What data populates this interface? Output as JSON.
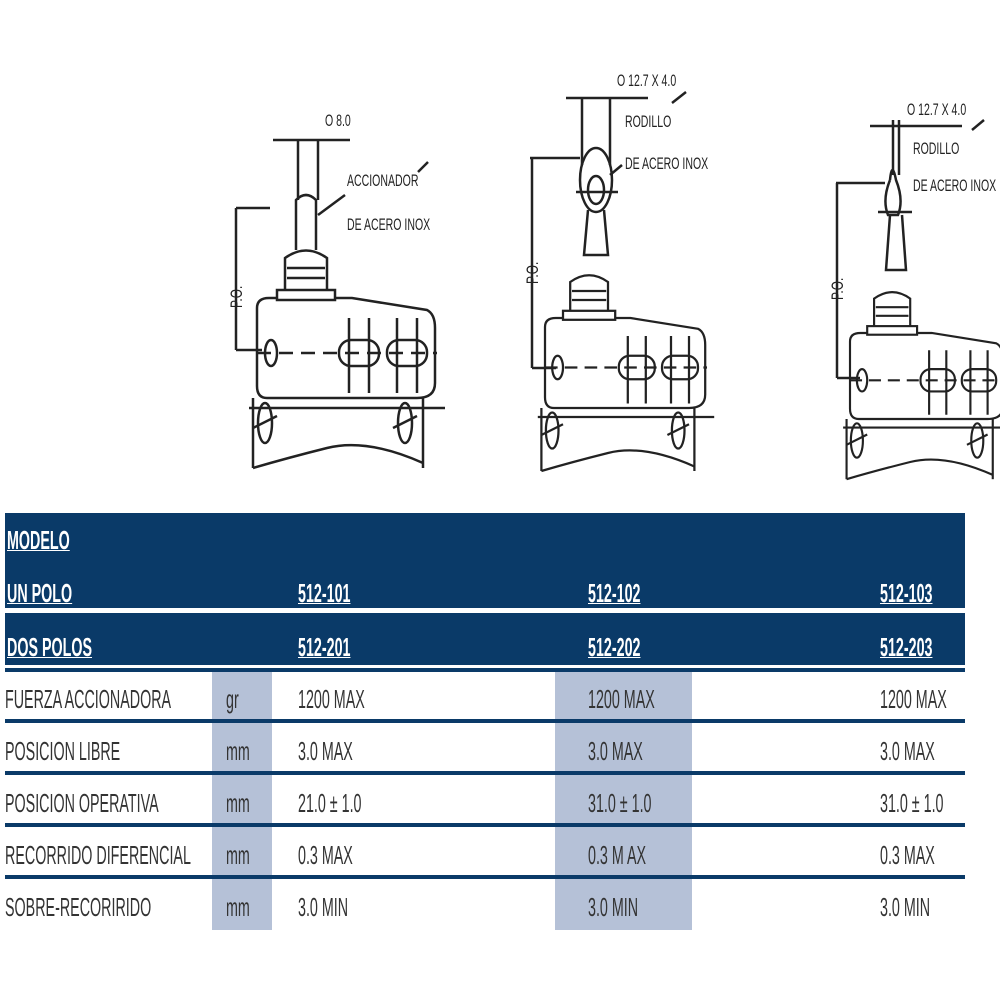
{
  "drawings": [
    {
      "dimension": "O 8.0",
      "note_line1": "ACCIONADOR",
      "note_line2": "DE ACERO INOX",
      "po_label": "P.O."
    },
    {
      "dimension": "O 12.7 X 4.0",
      "note_line1": "RODILLO",
      "note_line2": "DE ACERO INOX",
      "po_label": "P.O."
    },
    {
      "dimension": "O 12.7 X 4.0",
      "note_line1": "RODILLO",
      "note_line2": "DE ACERO INOX",
      "po_label": "P.O."
    }
  ],
  "table": {
    "header": {
      "modelo": "MODELO",
      "un_polo": "UN POLO",
      "dos_polos": "DOS POLOS",
      "un_polo_models": [
        "512-101",
        "512-102",
        "512-103"
      ],
      "dos_polos_models": [
        "512-201",
        "512-202",
        "512-203"
      ]
    },
    "rows": [
      {
        "label": "FUERZA  ACCIONADORA",
        "unit": "gr",
        "values": [
          "1200 MAX",
          "1200 MAX",
          "1200 MAX"
        ]
      },
      {
        "label": "POSICION LIBRE",
        "unit": "mm",
        "values": [
          "3.0 MAX",
          "3.0 MAX",
          "3.0  MAX"
        ]
      },
      {
        "label": "POSICION OPERATIVA",
        "unit": "mm",
        "values": [
          "21.0 ± 1.0",
          "31.0 ± 1.0",
          "31.0 ± 1.0"
        ]
      },
      {
        "label": "RECORRIDO  DIFERENCIAL",
        "unit": "mm",
        "values": [
          "0.3 MAX",
          "0.3 M AX",
          "0.3 MAX"
        ]
      },
      {
        "label": "SOBRE-RECORIRIDO",
        "unit": "mm",
        "values": [
          "3.0 MIN",
          "3.0 MIN",
          "3.0 MIN"
        ]
      }
    ],
    "colors": {
      "header": "#0a3a68",
      "shade": "#b5c1d7"
    }
  }
}
